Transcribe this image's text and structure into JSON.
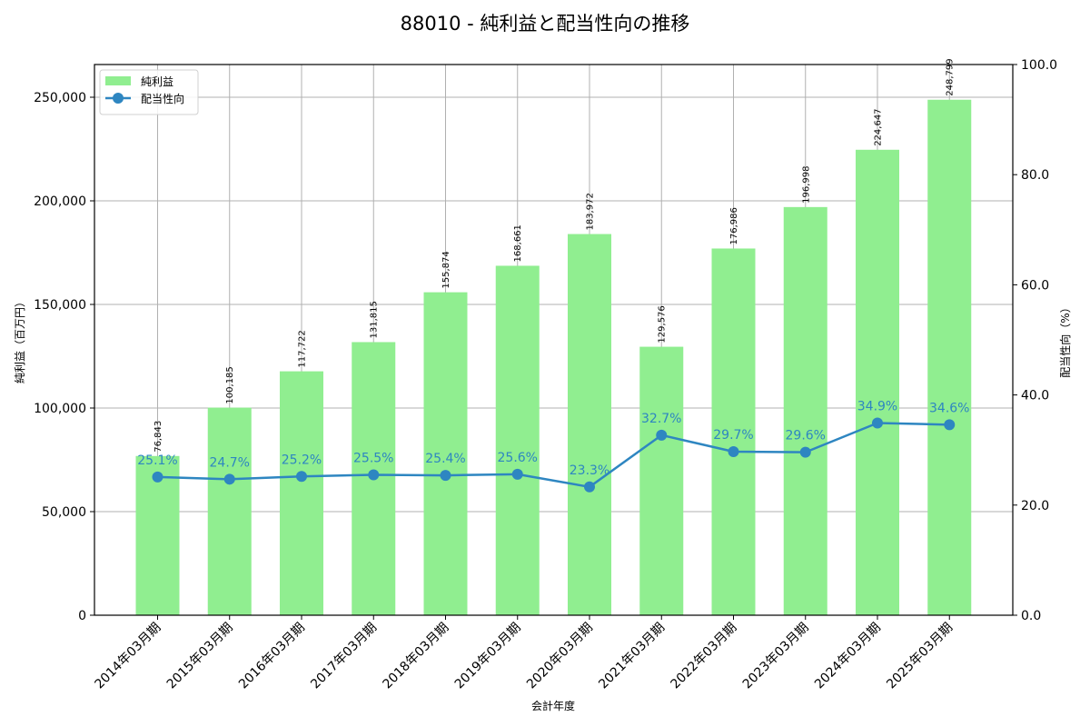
{
  "title": "88010 - 純利益と配当性向の推移",
  "colors": {
    "bar": "#90ee90",
    "line": "#2e86c1",
    "grid": "#b0b0b0",
    "axis": "#000000"
  },
  "legend": {
    "items": [
      {
        "label": "純利益",
        "type": "bar"
      },
      {
        "label": "配当性向",
        "type": "line"
      }
    ]
  },
  "chart_data": {
    "type": "bar+line",
    "title": "88010 - 純利益と配当性向の推移",
    "xlabel": "会計年度",
    "ylabel": "純利益（百万円）",
    "y2label": "配当性向（%）",
    "categories": [
      "2014年03月期",
      "2015年03月期",
      "2016年03月期",
      "2017年03月期",
      "2018年03月期",
      "2019年03月期",
      "2020年03月期",
      "2021年03月期",
      "2022年03月期",
      "2023年03月期",
      "2024年03月期",
      "2025年03月期"
    ],
    "series": [
      {
        "name": "純利益",
        "type": "bar",
        "axis": "left",
        "values": [
          76843,
          100185,
          117722,
          131815,
          155874,
          168661,
          183972,
          129576,
          176986,
          196998,
          224647,
          248799
        ],
        "labels": [
          "76,843",
          "100,185",
          "117,722",
          "131,815",
          "155,874",
          "168,661",
          "183,972",
          "129,576",
          "176,986",
          "196,998",
          "224,647",
          "248,799"
        ]
      },
      {
        "name": "配当性向",
        "type": "line",
        "axis": "right",
        "values": [
          25.1,
          24.7,
          25.2,
          25.5,
          25.4,
          25.6,
          23.3,
          32.7,
          29.7,
          29.6,
          34.9,
          34.6
        ],
        "labels": [
          "25.1%",
          "24.7%",
          "25.2%",
          "25.5%",
          "25.4%",
          "25.6%",
          "23.3%",
          "32.7%",
          "29.7%",
          "29.6%",
          "34.9%",
          "34.6%"
        ]
      }
    ],
    "ylim": [
      0,
      265789
    ],
    "y2lim": [
      0,
      100
    ],
    "yticks": [
      0,
      50000,
      100000,
      150000,
      200000,
      250000
    ],
    "ytick_labels": [
      "0",
      "50,000",
      "100,000",
      "150,000",
      "200,000",
      "250,000"
    ],
    "y2ticks": [
      0,
      20,
      40,
      60,
      80,
      100
    ],
    "y2tick_labels": [
      "0.0",
      "20.0",
      "40.0",
      "60.0",
      "80.0",
      "100.0"
    ],
    "grid": true,
    "legend_position": "upper left"
  }
}
